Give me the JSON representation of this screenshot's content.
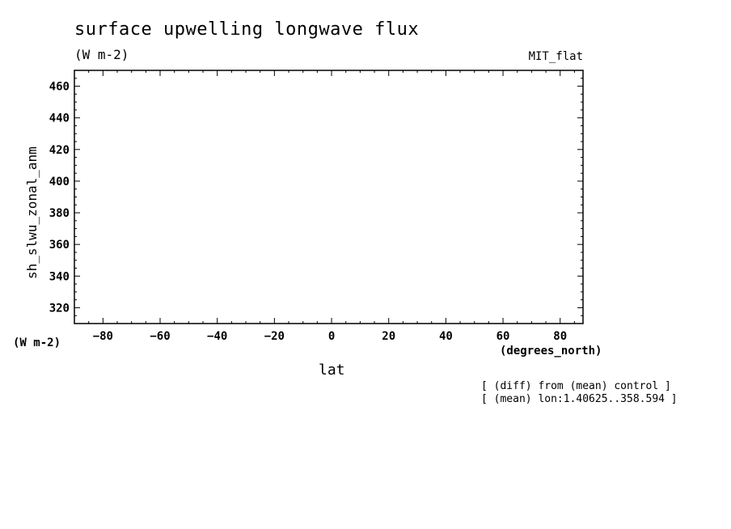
{
  "chart_data": {
    "type": "line",
    "title": "surface upwelling longwave flux",
    "units": "(W m-2)",
    "dataset": "MIT_flat",
    "ylabel": "sh_slwu_zonal_anm",
    "y_units": "(W m-2)",
    "xlabel": "lat",
    "x_units": "(degrees_north)",
    "xlim": [
      -90,
      88
    ],
    "ylim": [
      310,
      470
    ],
    "x_ticks": [
      -80,
      -60,
      -40,
      -20,
      0,
      20,
      40,
      60,
      80
    ],
    "y_ticks": [
      320,
      340,
      360,
      380,
      400,
      420,
      440,
      460
    ],
    "series": [],
    "grid": false,
    "notes": [
      "[ (diff) from (mean) control ]",
      "[ (mean) lon:1.40625..358.594 ]"
    ]
  }
}
